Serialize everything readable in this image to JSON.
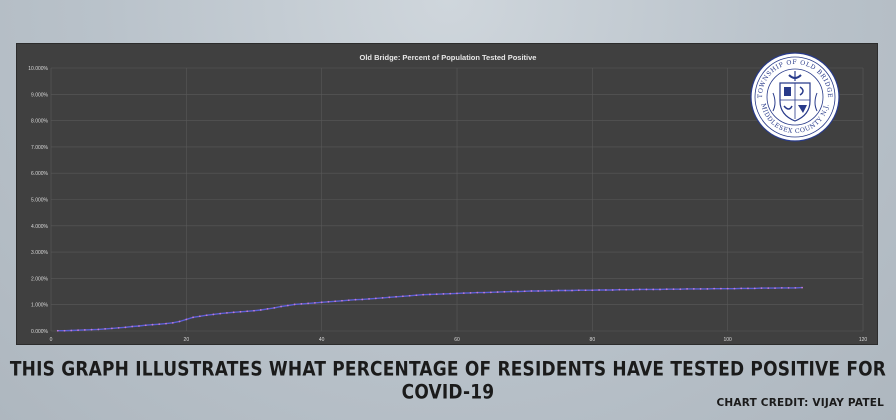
{
  "caption": "THIS GRAPH ILLUSTRATES WHAT PERCENTAGE OF RESIDENTS HAVE TESTED POSITIVE FOR COVID-19",
  "credit": "CHART CREDIT: VIJAY PATEL",
  "seal": {
    "text_top": "TOWNSHIP OF OLD BRIDGE",
    "text_bottom": "MIDDLESEX COUNTY N.J."
  },
  "colors": {
    "plot_bg": "#404040",
    "grid": "#595959",
    "line": "#5b5fd6",
    "marker": "#c37ad6",
    "axis_text": "#d9d9d9"
  },
  "chart_data": {
    "type": "line",
    "title": "Old Bridge: Percent of Population Tested Positive",
    "xlabel": "",
    "ylabel": "",
    "xlim": [
      0,
      120
    ],
    "ylim": [
      0,
      10
    ],
    "x_ticks": [
      0,
      20,
      40,
      60,
      80,
      100,
      120
    ],
    "y_ticks": [
      "0.000%",
      "1.000%",
      "2.000%",
      "3.000%",
      "4.000%",
      "5.000%",
      "6.000%",
      "7.000%",
      "8.000%",
      "9.000%",
      "10.000%"
    ],
    "grid": true,
    "series": [
      {
        "x": [
          1,
          2,
          3,
          4,
          5,
          6,
          7,
          8,
          9,
          10,
          11,
          12,
          13,
          14,
          15,
          16,
          17,
          18,
          19,
          20,
          21,
          22,
          23,
          24,
          25,
          26,
          27,
          28,
          29,
          30,
          31,
          32,
          33,
          34,
          35,
          36,
          37,
          38,
          39,
          40,
          41,
          42,
          43,
          44,
          45,
          46,
          47,
          48,
          49,
          50,
          51,
          52,
          53,
          54,
          55,
          56,
          57,
          58,
          59,
          60,
          61,
          62,
          63,
          64,
          65,
          66,
          67,
          68,
          69,
          70,
          71,
          72,
          73,
          74,
          75,
          76,
          77,
          78,
          79,
          80,
          81,
          82,
          83,
          84,
          85,
          86,
          87,
          88,
          89,
          90,
          91,
          92,
          93,
          94,
          95,
          96,
          97,
          98,
          99,
          100,
          101,
          102,
          103,
          104,
          105,
          106,
          107,
          108,
          109,
          110,
          111
        ],
        "y": [
          0.01,
          0.01,
          0.02,
          0.03,
          0.04,
          0.05,
          0.06,
          0.08,
          0.1,
          0.12,
          0.14,
          0.17,
          0.19,
          0.22,
          0.24,
          0.26,
          0.28,
          0.31,
          0.36,
          0.44,
          0.52,
          0.56,
          0.6,
          0.63,
          0.66,
          0.69,
          0.71,
          0.73,
          0.75,
          0.77,
          0.8,
          0.84,
          0.88,
          0.93,
          0.97,
          1.01,
          1.03,
          1.05,
          1.07,
          1.09,
          1.11,
          1.13,
          1.15,
          1.17,
          1.19,
          1.2,
          1.22,
          1.24,
          1.26,
          1.28,
          1.3,
          1.32,
          1.34,
          1.36,
          1.38,
          1.39,
          1.4,
          1.41,
          1.42,
          1.43,
          1.44,
          1.45,
          1.46,
          1.46,
          1.47,
          1.48,
          1.49,
          1.5,
          1.5,
          1.51,
          1.52,
          1.52,
          1.53,
          1.53,
          1.54,
          1.54,
          1.54,
          1.55,
          1.55,
          1.55,
          1.56,
          1.56,
          1.56,
          1.57,
          1.57,
          1.57,
          1.58,
          1.58,
          1.58,
          1.58,
          1.59,
          1.59,
          1.59,
          1.6,
          1.6,
          1.6,
          1.6,
          1.61,
          1.61,
          1.61,
          1.61,
          1.62,
          1.62,
          1.62,
          1.63,
          1.63,
          1.63,
          1.64,
          1.64,
          1.64,
          1.65
        ]
      }
    ]
  }
}
